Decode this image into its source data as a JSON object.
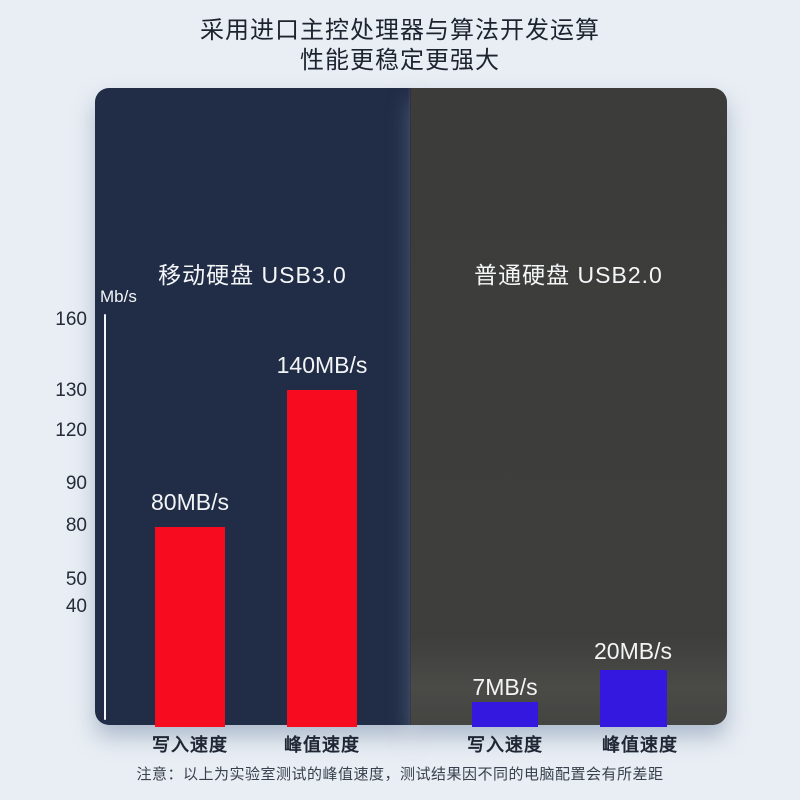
{
  "page": {
    "title_line1": "采用进口主控处理器与算法开发运算",
    "title_line2": "性能更稳定更强大",
    "note": "注意：以上为实验室测试的峰值速度，测试结果因不同的电脑配置会有所差距"
  },
  "axis": {
    "unit": "Mb/s",
    "ticks": [
      "160",
      "130",
      "120",
      "90",
      "80",
      "50",
      "40"
    ]
  },
  "left_panel": {
    "header": "移动硬盘 USB3.0",
    "bars": [
      {
        "value_label": "80MB/s",
        "category": "写入速度"
      },
      {
        "value_label": "140MB/s",
        "category": "峰值速度"
      }
    ]
  },
  "right_panel": {
    "header": "普通硬盘 USB2.0",
    "bars": [
      {
        "value_label": "7MB/s",
        "category": "写入速度"
      },
      {
        "value_label": "20MB/s",
        "category": "峰值速度"
      }
    ]
  },
  "colors": {
    "background": "#e9eef4",
    "left_panel_bg": "#212d47",
    "right_panel_bg": "#3d3d3b",
    "red_bar": "#f60c1e",
    "blue_bar": "#3418e0",
    "title_text": "#1d2430",
    "panel_text": "#f4f6f8"
  },
  "chart_data": {
    "type": "bar",
    "title": "采用进口主控处理器与算法开发运算 性能更稳定更强大",
    "ylabel": "Mb/s",
    "yticks": [
      160,
      130,
      120,
      90,
      80,
      50,
      40
    ],
    "ylim": [
      0,
      170
    ],
    "grid": false,
    "legend_position": "panel-headers",
    "groups": [
      {
        "name": "移动硬盘 USB3.0",
        "color": "#f60c1e",
        "categories": [
          "写入速度",
          "峰值速度"
        ],
        "values": [
          80,
          140
        ],
        "unit": "MB/s"
      },
      {
        "name": "普通硬盘 USB2.0",
        "color": "#3418e0",
        "categories": [
          "写入速度",
          "峰值速度"
        ],
        "values": [
          7,
          20
        ],
        "unit": "MB/s"
      }
    ],
    "note": "注意：以上为实验室测试的峰值速度，测试结果因不同的电脑配置会有所差距"
  }
}
